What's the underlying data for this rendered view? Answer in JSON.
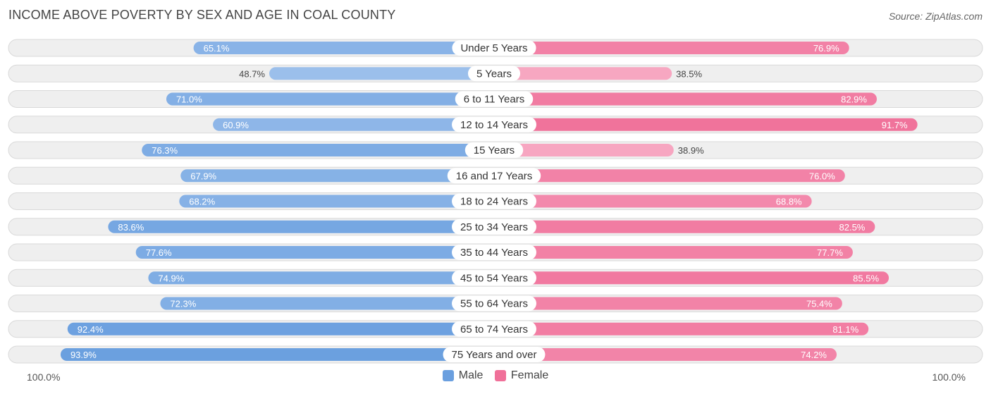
{
  "chart_data": {
    "type": "bar",
    "orientation": "horizontal-diverging",
    "title": "INCOME ABOVE POVERTY BY SEX AND AGE IN COAL COUNTY",
    "source": "Source: ZipAtlas.com",
    "categories": [
      "Under 5 Years",
      "5 Years",
      "6 to 11 Years",
      "12 to 14 Years",
      "15 Years",
      "16 and 17 Years",
      "18 to 24 Years",
      "25 to 34 Years",
      "35 to 44 Years",
      "45 to 54 Years",
      "55 to 64 Years",
      "65 to 74 Years",
      "75 Years and over"
    ],
    "series": [
      {
        "name": "Male",
        "values": [
          65.1,
          48.7,
          71.0,
          60.9,
          76.3,
          67.9,
          68.2,
          83.6,
          77.6,
          74.9,
          72.3,
          92.4,
          93.9
        ]
      },
      {
        "name": "Female",
        "values": [
          76.9,
          38.5,
          82.9,
          91.7,
          38.9,
          76.0,
          68.8,
          82.5,
          77.7,
          85.5,
          75.4,
          81.1,
          74.2
        ]
      }
    ],
    "value_labels_male": [
      "65.1%",
      "48.7%",
      "71.0%",
      "60.9%",
      "76.3%",
      "67.9%",
      "68.2%",
      "83.6%",
      "77.6%",
      "74.9%",
      "72.3%",
      "92.4%",
      "93.9%"
    ],
    "value_labels_female": [
      "76.9%",
      "38.5%",
      "82.9%",
      "91.7%",
      "38.9%",
      "76.0%",
      "68.8%",
      "82.5%",
      "77.7%",
      "85.5%",
      "75.4%",
      "81.1%",
      "74.2%"
    ],
    "xlim": [
      0,
      100
    ],
    "axis_left_label": "100.0%",
    "axis_right_label": "100.0%",
    "legend": [
      {
        "label": "Male",
        "color": "#6a9fdf"
      },
      {
        "label": "Female",
        "color": "#f07099"
      }
    ],
    "colors": {
      "male_strong": "#6a9fdf",
      "male_light": "#a9c8ef",
      "female_strong": "#f07099",
      "female_light": "#f7aac4"
    }
  }
}
